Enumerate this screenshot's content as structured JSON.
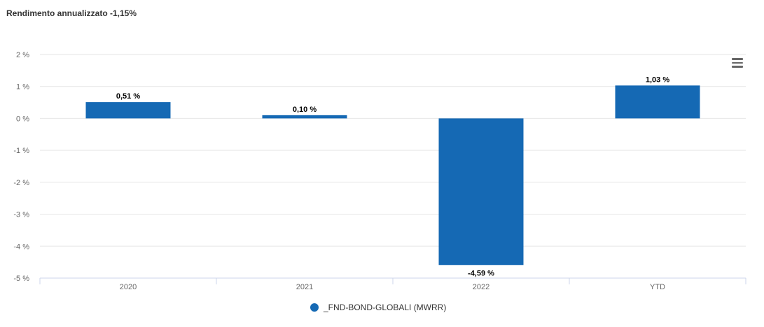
{
  "title": "Rendimento annualizzato -1,15%",
  "colors": {
    "bar": "#1569b4",
    "grid": "#e6e6e6",
    "axis": "#ccd6eb",
    "text": "#666666",
    "label": "#000000"
  },
  "menu_icon": "hamburger-menu-icon",
  "legend": {
    "label": "_FND-BOND-GLOBALI (MWRR)"
  },
  "chart_data": {
    "type": "bar",
    "categories": [
      "2020",
      "2021",
      "2022",
      "YTD"
    ],
    "series": [
      {
        "name": "_FND-BOND-GLOBALI (MWRR)",
        "values": [
          0.51,
          0.1,
          -4.59,
          1.03
        ],
        "data_labels": [
          "0,51 %",
          "0,10 %",
          "-4,59 %",
          "1,03 %"
        ]
      }
    ],
    "yticks": [
      2,
      1,
      0,
      -1,
      -2,
      -3,
      -4,
      -5
    ],
    "ytick_labels": [
      "2 %",
      "1 %",
      "0 %",
      "-1 %",
      "-2 %",
      "-3 %",
      "-4 %",
      "-5 %"
    ],
    "ylim": [
      -5,
      2
    ],
    "grid": true,
    "legend_position": "bottom-center"
  }
}
